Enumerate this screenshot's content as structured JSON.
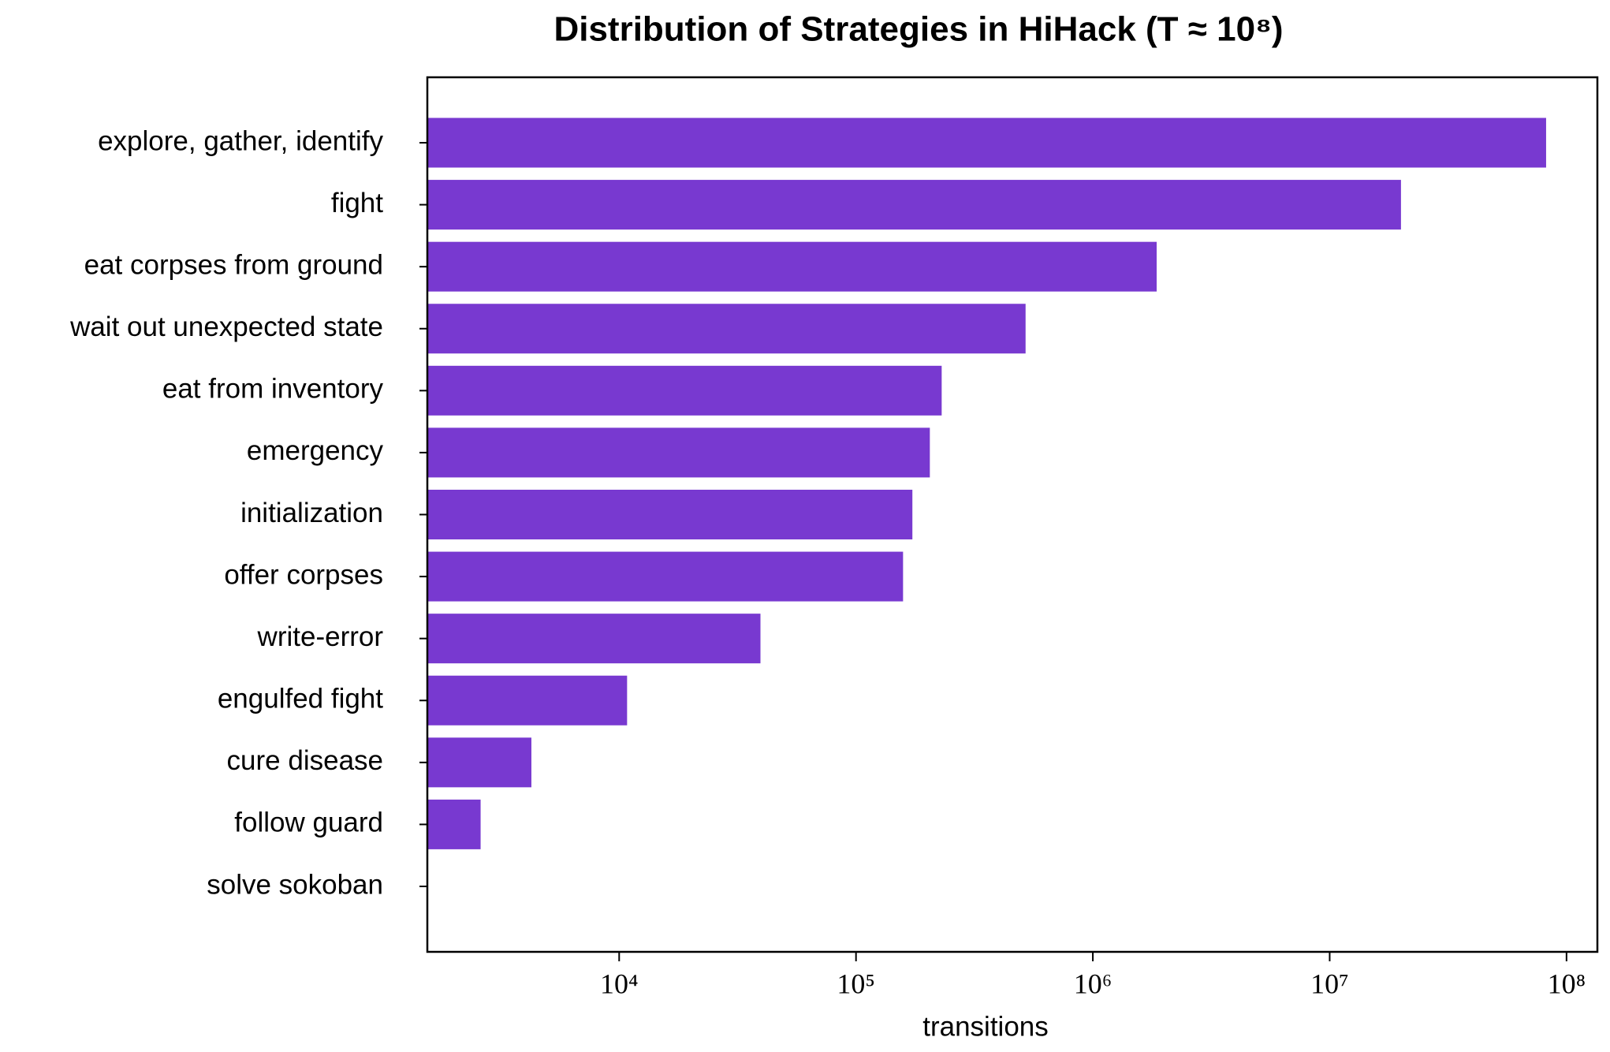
{
  "chart_data": {
    "type": "bar",
    "orientation": "horizontal",
    "title": "Distribution of Strategies in HiHack  (T ≈ 10⁸)",
    "x_label": "transitions",
    "categories": [
      "explore, gather, identify",
      "fight",
      "eat corpses from ground",
      "wait out unexpected state",
      "eat from inventory",
      "emergency",
      "initialization",
      "offer corpses",
      "write-error",
      "engulfed fight",
      "cure disease",
      "follow guard",
      "solve sokoban"
    ],
    "values": [
      82000000,
      20000000,
      1860000,
      520000,
      230000,
      205000,
      173000,
      158000,
      39500,
      10800,
      4260,
      2600,
      0
    ],
    "color": "#7839d0",
    "xscale": "log",
    "xlim": [
      1549,
      135000000
    ],
    "xticks": [
      {
        "value": 10000,
        "label": "10⁴"
      },
      {
        "value": 100000,
        "label": "10⁵"
      },
      {
        "value": 1000000,
        "label": "10⁶"
      },
      {
        "value": 10000000,
        "label": "10⁷"
      },
      {
        "value": 100000000,
        "label": "10⁸"
      }
    ],
    "grid": false
  }
}
